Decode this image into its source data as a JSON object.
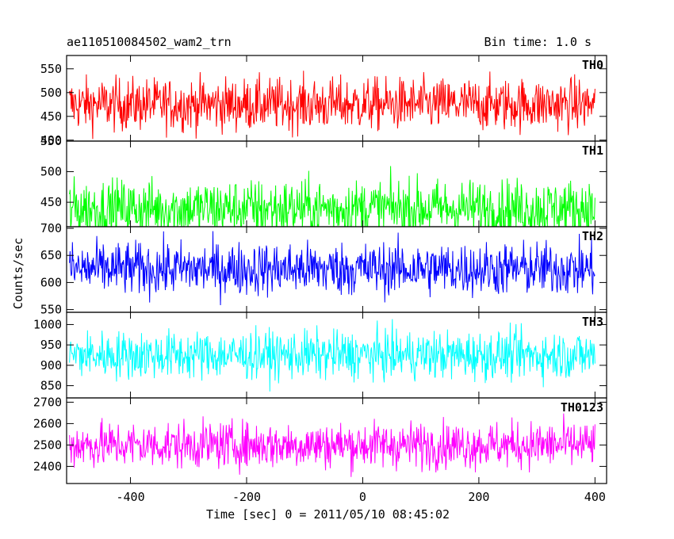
{
  "header": {
    "title_left": "ae110510084502_wam2_trn",
    "title_right": "Bin time: 1.0 s"
  },
  "chart_data": {
    "type": "line",
    "xlabel": "Time [sec] 0 = 2011/05/10 08:45:02",
    "ylabel": "Counts/sec",
    "xlim": [
      -510,
      420
    ],
    "xticks": [
      -400,
      -200,
      0,
      200,
      400
    ],
    "panels": [
      {
        "name": "TH0",
        "color": "#ff0000",
        "ylim": [
          398,
          578
        ],
        "yticks": [
          400,
          450,
          500,
          550
        ],
        "mean": 475,
        "spread": 28,
        "x_range": [
          -505,
          400
        ]
      },
      {
        "name": "TH1",
        "color": "#00ff00",
        "ylim": [
          410,
          550
        ],
        "yticks": [
          450,
          500,
          550
        ],
        "mean": 440,
        "spread": 24,
        "x_range": [
          -505,
          400
        ]
      },
      {
        "name": "TH2",
        "color": "#0000ff",
        "ylim": [
          545,
          703
        ],
        "yticks": [
          550,
          600,
          650,
          700
        ],
        "mean": 625,
        "spread": 25,
        "x_range": [
          -505,
          400
        ]
      },
      {
        "name": "TH3",
        "color": "#00ffff",
        "ylim": [
          820,
          1030
        ],
        "yticks": [
          850,
          900,
          950,
          1000
        ],
        "mean": 925,
        "spread": 30,
        "x_range": [
          -505,
          400
        ]
      },
      {
        "name": "TH0123",
        "color": "#ff00ff",
        "ylim": [
          2320,
          2720
        ],
        "yticks": [
          2400,
          2500,
          2600,
          2700
        ],
        "mean": 2500,
        "spread": 55,
        "x_range": [
          -505,
          400
        ]
      }
    ]
  }
}
